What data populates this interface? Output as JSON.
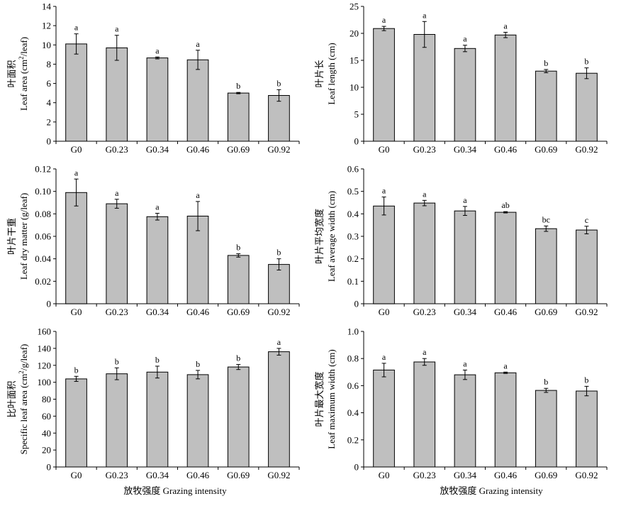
{
  "x_axis_label": "放牧强度 Grazing intensity",
  "chart_data": [
    {
      "type": "bar",
      "ylabel_cn": "叶面积",
      "ylabel_en_pre": "Leaf area (cm",
      "ylabel_en_sup": "2",
      "ylabel_en_post": "/leaf)",
      "xlabel": "",
      "categories": [
        "G0",
        "G0.23",
        "G0.34",
        "G0.46",
        "G0.69",
        "G0.92"
      ],
      "values": [
        10.1,
        9.7,
        8.65,
        8.45,
        5.0,
        4.75
      ],
      "errors": [
        1.05,
        1.3,
        0.1,
        1.0,
        0.07,
        0.6
      ],
      "letters": [
        "a",
        "a",
        "a",
        "a",
        "b",
        "b"
      ],
      "ylim": [
        0,
        14
      ],
      "yticks": [
        0,
        2,
        4,
        6,
        8,
        10,
        12,
        14
      ]
    },
    {
      "type": "bar",
      "ylabel_cn": "叶片长",
      "ylabel_en_pre": "Leaf length (cm)",
      "ylabel_en_sup": "",
      "ylabel_en_post": "",
      "xlabel": "",
      "categories": [
        "G0",
        "G0.23",
        "G0.34",
        "G0.46",
        "G0.69",
        "G0.92"
      ],
      "values": [
        20.9,
        19.8,
        17.2,
        19.7,
        13.0,
        12.6
      ],
      "errors": [
        0.4,
        2.4,
        0.6,
        0.5,
        0.3,
        1.0
      ],
      "letters": [
        "a",
        "a",
        "a",
        "a",
        "b",
        "b"
      ],
      "ylim": [
        0,
        25
      ],
      "yticks": [
        0,
        5,
        10,
        15,
        20,
        25
      ]
    },
    {
      "type": "bar",
      "ylabel_cn": "叶片干重",
      "ylabel_en_pre": "Leaf dry matter (g/leaf)",
      "ylabel_en_sup": "",
      "ylabel_en_post": "",
      "xlabel": "",
      "categories": [
        "G0",
        "G0.23",
        "G0.34",
        "G0.46",
        "G0.69",
        "G0.92"
      ],
      "values": [
        0.099,
        0.089,
        0.0775,
        0.078,
        0.043,
        0.035
      ],
      "errors": [
        0.012,
        0.004,
        0.003,
        0.013,
        0.0015,
        0.005
      ],
      "letters": [
        "a",
        "a",
        "a",
        "a",
        "b",
        "b"
      ],
      "ylim": [
        0,
        0.12
      ],
      "yticks": [
        0,
        0.02,
        0.04,
        0.06,
        0.08,
        0.1,
        0.12
      ],
      "ytick_labels": [
        "0",
        "0.02",
        "0.04",
        "0.06",
        "0.08",
        "0.10",
        "0.12"
      ]
    },
    {
      "type": "bar",
      "ylabel_cn": "叶片平均宽度",
      "ylabel_en_pre": "Leaf average width (cm)",
      "ylabel_en_sup": "",
      "ylabel_en_post": "",
      "xlabel": "",
      "categories": [
        "G0",
        "G0.23",
        "G0.34",
        "G0.46",
        "G0.69",
        "G0.92"
      ],
      "values": [
        0.435,
        0.448,
        0.413,
        0.407,
        0.334,
        0.328
      ],
      "errors": [
        0.04,
        0.012,
        0.02,
        0.003,
        0.012,
        0.017
      ],
      "letters": [
        "a",
        "a",
        "a",
        "ab",
        "bc",
        "c"
      ],
      "ylim": [
        0,
        0.6
      ],
      "yticks": [
        0,
        0.1,
        0.2,
        0.3,
        0.4,
        0.5,
        0.6
      ]
    },
    {
      "type": "bar",
      "ylabel_cn": "比叶面积",
      "ylabel_en_pre": "Specific leaf area (cm",
      "ylabel_en_sup": "2",
      "ylabel_en_post": "/g/leaf)",
      "xlabel": "",
      "categories": [
        "G0",
        "G0.23",
        "G0.34",
        "G0.46",
        "G0.69",
        "G0.92"
      ],
      "values": [
        104,
        110,
        112,
        109,
        118,
        136
      ],
      "errors": [
        3,
        7,
        7,
        5,
        3,
        4
      ],
      "letters": [
        "b",
        "b",
        "b",
        "b",
        "b",
        "a"
      ],
      "ylim": [
        0,
        160
      ],
      "yticks": [
        0,
        20,
        40,
        60,
        80,
        100,
        120,
        140,
        160
      ]
    },
    {
      "type": "bar",
      "ylabel_cn": "叶片最大宽度",
      "ylabel_en_pre": "Leaf maximum width (cm)",
      "ylabel_en_sup": "",
      "ylabel_en_post": "",
      "xlabel": "",
      "categories": [
        "G0",
        "G0.23",
        "G0.34",
        "G0.46",
        "G0.69",
        "G0.92"
      ],
      "values": [
        0.715,
        0.775,
        0.68,
        0.695,
        0.565,
        0.56
      ],
      "errors": [
        0.05,
        0.025,
        0.035,
        0.005,
        0.015,
        0.035
      ],
      "letters": [
        "a",
        "a",
        "a",
        "a",
        "b",
        "b"
      ],
      "ylim": [
        0,
        1.0
      ],
      "yticks": [
        0,
        0.2,
        0.4,
        0.6,
        0.8,
        1.0
      ],
      "ytick_labels": [
        "0",
        "0.2",
        "0.4",
        "0.6",
        "0.8",
        "1.0"
      ]
    }
  ]
}
